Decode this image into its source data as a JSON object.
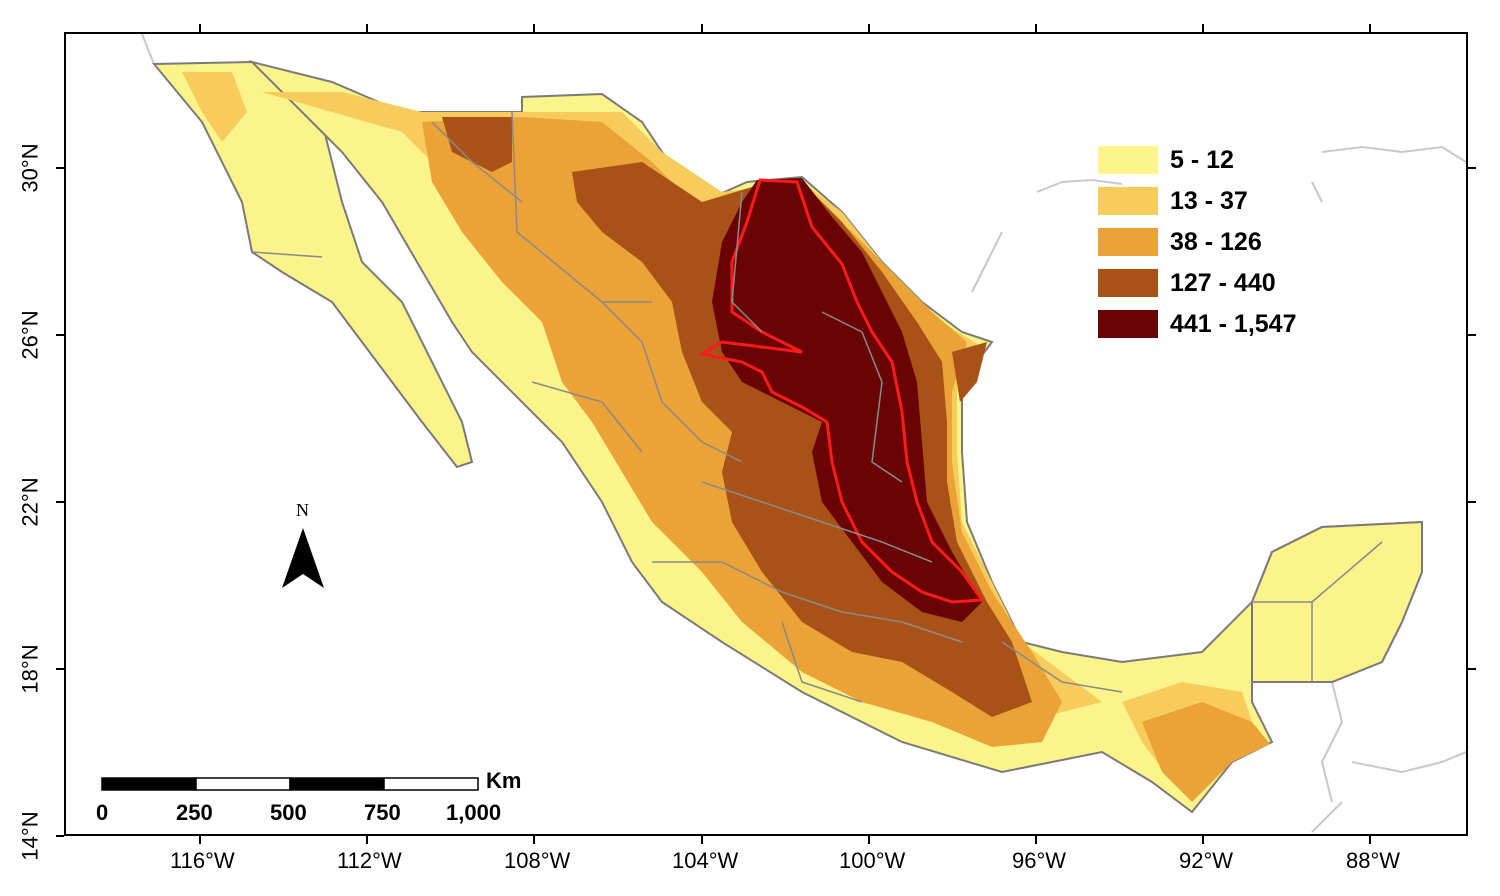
{
  "map": {
    "longitude_ticks": [
      "116°W",
      "112°W",
      "108°W",
      "104°W",
      "100°W",
      "96°W",
      "92°W",
      "88°W"
    ],
    "latitude_ticks": [
      "30°N",
      "26°N",
      "22°N",
      "18°N",
      "14°N"
    ]
  },
  "legend": {
    "classes": [
      {
        "label": "5 - 12",
        "color": "#fbf48a"
      },
      {
        "label": "13 - 37",
        "color": "#f7cc5c"
      },
      {
        "label": "38 - 126",
        "color": "#eba236"
      },
      {
        "label": "127 - 440",
        "color": "#a85218"
      },
      {
        "label": "441 - 1,547",
        "color": "#6a0404"
      }
    ]
  },
  "scale_bar": {
    "unit": "Km",
    "labels": [
      "0",
      "250",
      "500",
      "750",
      "1,000"
    ]
  },
  "north_arrow": {
    "letter": "N",
    "icon": "north-arrow-icon"
  },
  "colors": {
    "highlight_outline": "#ff1a1a",
    "state_borders": "#7a7a7a",
    "neighbor_borders": "#c8c8c8"
  }
}
